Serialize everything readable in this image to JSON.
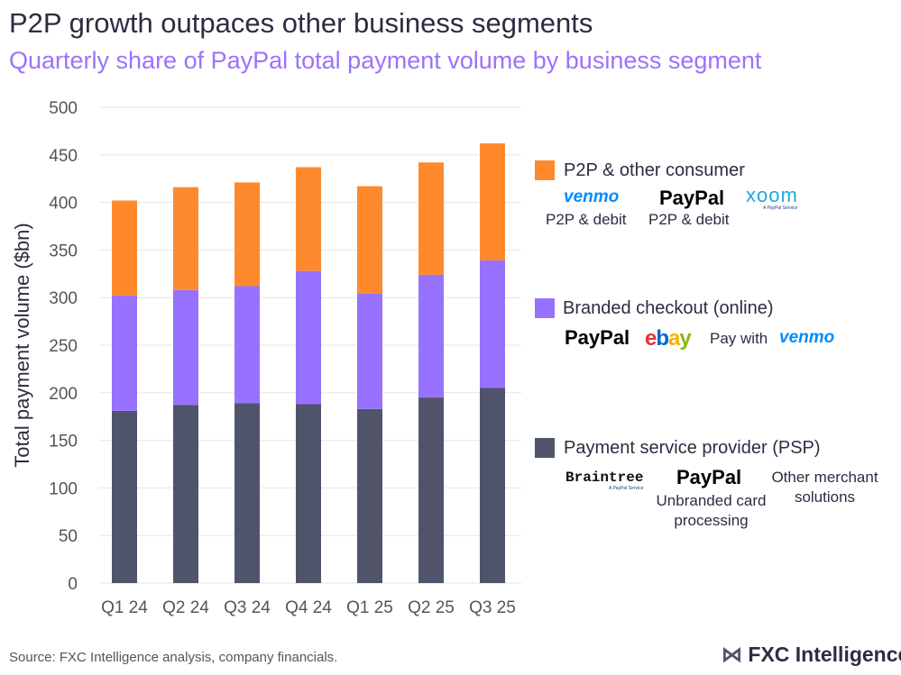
{
  "title": "P2P growth outpaces other business segments",
  "subtitle": "Quarterly share of PayPal total payment volume by business segment",
  "chart_data": {
    "type": "bar",
    "stacked": true,
    "categories": [
      "Q1 24",
      "Q2 24",
      "Q3 24",
      "Q4 24",
      "Q1 25",
      "Q2 25",
      "Q3 25"
    ],
    "series": [
      {
        "name": "Payment service provider (PSP)",
        "color": "#50546b",
        "values": [
          181,
          187,
          189,
          188,
          183,
          195,
          205
        ]
      },
      {
        "name": "Branded checkout (online)",
        "color": "#9772ff",
        "values": [
          121,
          121,
          123,
          140,
          121,
          129,
          134
        ]
      },
      {
        "name": "P2P & other consumer",
        "color": "#ff8a2d",
        "values": [
          100,
          108,
          109,
          109,
          113,
          118,
          123
        ]
      }
    ],
    "ylabel": "Total payment volume ($bn)",
    "ylim": [
      0,
      500
    ],
    "yticks": [
      0,
      50,
      100,
      150,
      200,
      250,
      300,
      350,
      400,
      450,
      500
    ],
    "grid": true,
    "legend": "right"
  },
  "legend": {
    "p2p": {
      "label": "P2P & other consumer",
      "venmo": "venmo",
      "venmo_sub": "P2P & debit",
      "paypal": "PayPal",
      "paypal_sub": "P2P & debit",
      "xoom": "xoom",
      "xoom_tag": "A PayPal Service"
    },
    "branded": {
      "label": "Branded checkout (online)",
      "paypal": "PayPal",
      "ebay": "ebay",
      "pay_with": "Pay with",
      "venmo": "venmo"
    },
    "psp": {
      "label": "Payment service provider (PSP)",
      "braintree": "Braintree",
      "braintree_tag": "A PayPal Service",
      "paypal": "PayPal",
      "paypal_sub": "Unbranded card processing",
      "other": "Other merchant solutions"
    }
  },
  "source": "Source: FXC Intelligence analysis, company financials.",
  "brand": "FXC Intelligence"
}
